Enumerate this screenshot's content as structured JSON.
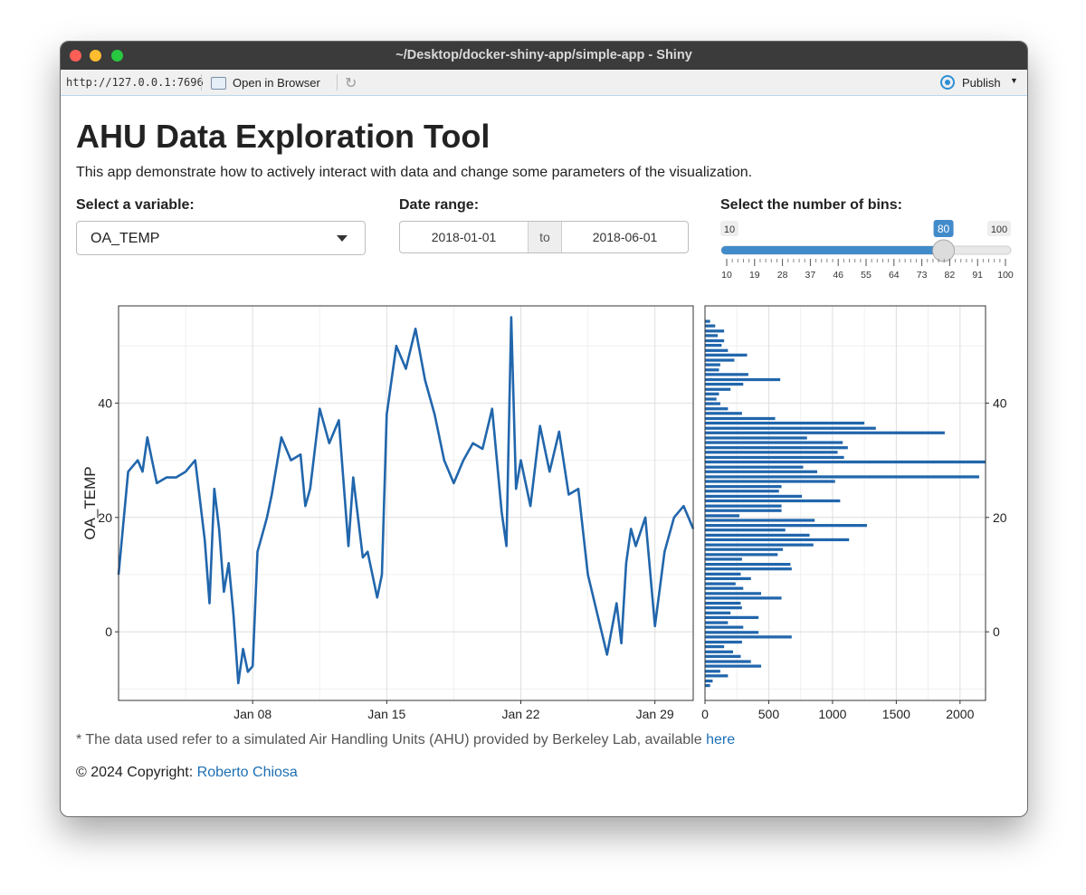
{
  "window": {
    "title": "~/Desktop/docker-shiny-app/simple-app - Shiny"
  },
  "toolbar": {
    "url": "http://127.0.0.1:7696",
    "open_browser_label": "Open in Browser",
    "publish_label": "Publish"
  },
  "page": {
    "title": "AHU Data Exploration Tool",
    "intro": "This app demonstrate how to actively interact with data and change some parameters of the visualization."
  },
  "controls": {
    "variable_label": "Select a variable:",
    "variable_value": "OA_TEMP",
    "date_label": "Date range:",
    "date_start": "2018-01-01",
    "date_to": "to",
    "date_end": "2018-06-01",
    "bins_label": "Select the number of bins:",
    "bins_min": "10",
    "bins_max": "100",
    "bins_value": 80,
    "bins_value_label": "80",
    "bins_ticks": [
      "10",
      "19",
      "28",
      "37",
      "46",
      "55",
      "64",
      "73",
      "82",
      "91",
      "100"
    ]
  },
  "chart_data": [
    {
      "type": "line",
      "ylabel": "OA_TEMP",
      "xlabel": "",
      "x_ticks": [
        "Jan 08",
        "Jan 15",
        "Jan 22",
        "Jan 29"
      ],
      "y_ticks": [
        "0",
        "20",
        "40"
      ],
      "ylim": [
        -12,
        57
      ],
      "xlim": [
        "2018-01-01",
        "2018-01-31"
      ],
      "grid": true,
      "color": "#2166ac",
      "series": [
        {
          "x": [
            "2018-01-01",
            "2018-01-01 12:00",
            "2018-01-02",
            "2018-01-02 06:00",
            "2018-01-02 12:00",
            "2018-01-02 18:00",
            "2018-01-03",
            "2018-01-03 12:00",
            "2018-01-04",
            "2018-01-04 12:00",
            "2018-01-05",
            "2018-01-05 12:00",
            "2018-01-05 18:00",
            "2018-01-06",
            "2018-01-06 06:00",
            "2018-01-06 12:00",
            "2018-01-06 18:00",
            "2018-01-07",
            "2018-01-07 06:00",
            "2018-01-07 12:00",
            "2018-01-07 18:00",
            "2018-01-08",
            "2018-01-08 06:00",
            "2018-01-08 12:00",
            "2018-01-08 18:00",
            "2018-01-09",
            "2018-01-09 12:00",
            "2018-01-10",
            "2018-01-10 12:00",
            "2018-01-10 18:00",
            "2018-01-11",
            "2018-01-11 12:00",
            "2018-01-12",
            "2018-01-12 12:00",
            "2018-01-13",
            "2018-01-13 06:00",
            "2018-01-13 12:00",
            "2018-01-13 18:00",
            "2018-01-14",
            "2018-01-14 06:00",
            "2018-01-14 12:00",
            "2018-01-14 18:00",
            "2018-01-15",
            "2018-01-15 12:00",
            "2018-01-16",
            "2018-01-16 12:00",
            "2018-01-17",
            "2018-01-17 12:00",
            "2018-01-18",
            "2018-01-18 12:00",
            "2018-01-19",
            "2018-01-19 12:00",
            "2018-01-20",
            "2018-01-20 12:00",
            "2018-01-21",
            "2018-01-21 06:00",
            "2018-01-21 12:00",
            "2018-01-21 18:00",
            "2018-01-22",
            "2018-01-22 12:00",
            "2018-01-23",
            "2018-01-23 12:00",
            "2018-01-24",
            "2018-01-24 12:00",
            "2018-01-25",
            "2018-01-25 12:00",
            "2018-01-26",
            "2018-01-26 12:00",
            "2018-01-27",
            "2018-01-27 06:00",
            "2018-01-27 12:00",
            "2018-01-27 18:00",
            "2018-01-28",
            "2018-01-28 12:00",
            "2018-01-29",
            "2018-01-29 12:00",
            "2018-01-30",
            "2018-01-30 12:00",
            "2018-01-31"
          ],
          "y": [
            10,
            28,
            30,
            28,
            34,
            30,
            26,
            27,
            27,
            28,
            30,
            16,
            5,
            25,
            18,
            7,
            12,
            3,
            -9,
            -3,
            -7,
            -6,
            14,
            17,
            20,
            24,
            34,
            30,
            31,
            22,
            25,
            39,
            33,
            37,
            15,
            27,
            20,
            13,
            14,
            10,
            6,
            10,
            38,
            50,
            46,
            53,
            44,
            38,
            30,
            26,
            30,
            33,
            32,
            39,
            21,
            15,
            55,
            25,
            30,
            22,
            36,
            28,
            35,
            24,
            25,
            10,
            3,
            -4,
            5,
            -2,
            12,
            18,
            15,
            20,
            1,
            14,
            20,
            22,
            18
          ]
        }
      ]
    },
    {
      "type": "bar",
      "orientation": "horizontal",
      "x_ticks": [
        "0",
        "500",
        "1000",
        "1500",
        "2000"
      ],
      "y_ticks": [
        "0",
        "20",
        "40"
      ],
      "xlim": [
        0,
        2200
      ],
      "ylim": [
        -12,
        57
      ],
      "grid": true,
      "color": "#2166ac",
      "bin_centers": [
        -9.4,
        -8.6,
        -7.7,
        -6.9,
        -6.0,
        -5.2,
        -4.3,
        -3.5,
        -2.6,
        -1.8,
        -0.9,
        -0.1,
        0.8,
        1.6,
        2.5,
        3.3,
        4.2,
        5.0,
        5.9,
        6.7,
        7.6,
        8.4,
        9.3,
        10.1,
        11.0,
        11.8,
        12.7,
        13.5,
        14.4,
        15.2,
        16.1,
        16.9,
        17.8,
        18.6,
        19.5,
        20.3,
        21.2,
        22.0,
        22.9,
        23.7,
        24.6,
        25.4,
        26.3,
        27.1,
        28.0,
        28.8,
        29.7,
        30.5,
        31.4,
        32.2,
        33.1,
        33.9,
        34.8,
        35.6,
        36.5,
        37.3,
        38.2,
        39.0,
        39.9,
        40.7,
        41.6,
        42.4,
        43.3,
        44.1,
        45.0,
        45.8,
        46.7,
        47.5,
        48.4,
        49.2,
        50.1,
        50.9,
        51.8,
        52.6,
        53.5,
        54.3
      ],
      "counts": [
        40,
        60,
        180,
        120,
        440,
        360,
        280,
        220,
        150,
        290,
        680,
        420,
        300,
        180,
        420,
        200,
        290,
        280,
        600,
        440,
        300,
        240,
        360,
        280,
        680,
        670,
        290,
        570,
        610,
        850,
        1130,
        820,
        630,
        1270,
        860,
        270,
        600,
        600,
        1060,
        760,
        580,
        600,
        1020,
        2150,
        880,
        770,
        2200,
        1090,
        1040,
        1120,
        1080,
        800,
        1880,
        1340,
        1250,
        550,
        290,
        180,
        120,
        90,
        110,
        200,
        300,
        590,
        340,
        110,
        120,
        230,
        330,
        180,
        130,
        150,
        100,
        150,
        80,
        40
      ]
    }
  ],
  "footer": {
    "note": "* The data used refer to a simulated Air Handling Units (AHU) provided by Berkeley Lab, available ",
    "note_link": "here",
    "copyright": "© 2024 Copyright: ",
    "author": "Roberto Chiosa"
  }
}
